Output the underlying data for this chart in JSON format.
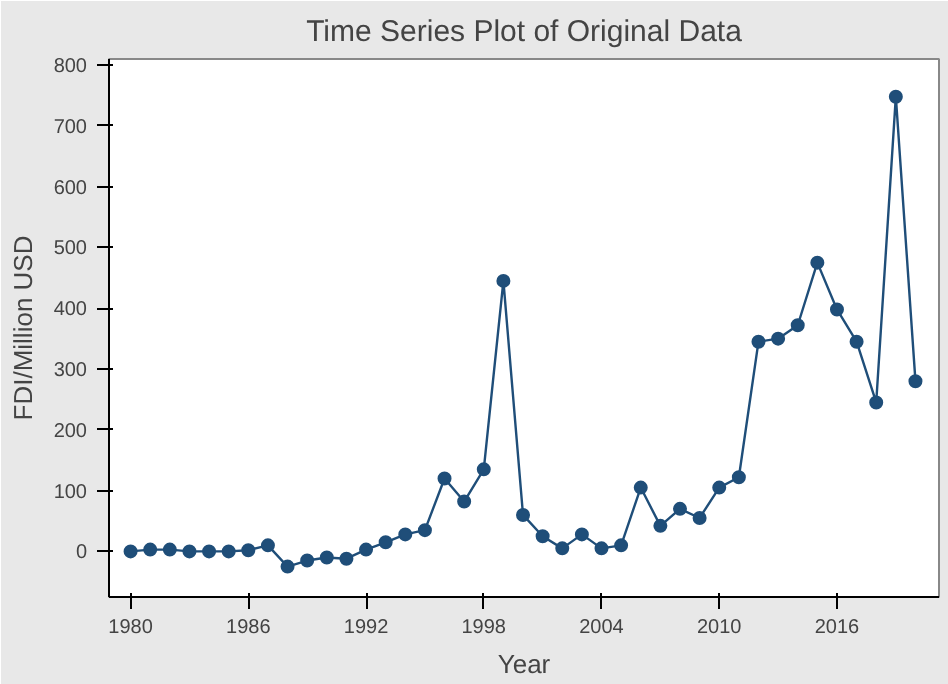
{
  "chart_data": {
    "type": "line",
    "title": "Time Series Plot of Original Data",
    "xlabel": "Year",
    "ylabel": "FDI/Million USD",
    "x": [
      1980,
      1981,
      1982,
      1983,
      1984,
      1985,
      1986,
      1987,
      1988,
      1989,
      1990,
      1991,
      1992,
      1993,
      1994,
      1995,
      1996,
      1997,
      1998,
      1999,
      2000,
      2001,
      2002,
      2003,
      2004,
      2005,
      2006,
      2007,
      2008,
      2009,
      2010,
      2011,
      2012,
      2013,
      2014,
      2015,
      2016,
      2017,
      2018,
      2019,
      2020
    ],
    "series": [
      {
        "color": "#1f4e79",
        "values": [
          0,
          3,
          3,
          0,
          0,
          0,
          2,
          10,
          -25,
          -15,
          -10,
          -12,
          3,
          15,
          28,
          35,
          120,
          82,
          135,
          445,
          60,
          25,
          5,
          28,
          5,
          10,
          105,
          42,
          70,
          55,
          105,
          122,
          345,
          350,
          372,
          475,
          398,
          345,
          245,
          748,
          280
        ]
      }
    ],
    "xlim": [
      1978.9,
      2021.2
    ],
    "xticks": [
      1980,
      1986,
      1992,
      1998,
      2004,
      2010,
      2016
    ],
    "ylim": [
      -75,
      810
    ],
    "yticks": [
      0,
      100,
      200,
      300,
      400,
      500,
      600,
      700,
      800
    ],
    "grid": false,
    "marker": "circle",
    "line_style": "solid"
  }
}
